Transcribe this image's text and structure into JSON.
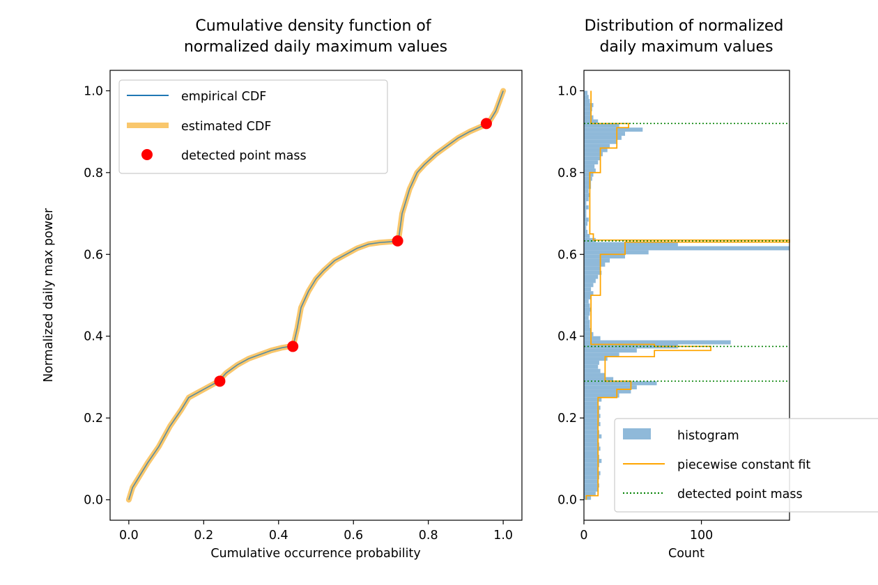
{
  "chart_data": [
    {
      "type": "line",
      "title": "Cumulative density function of\nnormalized daily maximum values",
      "xlabel": "Cumulative occurrence probability",
      "ylabel": "Normalized daily max power",
      "xlim": [
        -0.05,
        1.05
      ],
      "ylim": [
        -0.05,
        1.05
      ],
      "xticks": [
        "0.0",
        "0.2",
        "0.4",
        "0.6",
        "0.8",
        "1.0"
      ],
      "yticks": [
        "0.0",
        "0.2",
        "0.4",
        "0.6",
        "0.8",
        "1.0"
      ],
      "legend": "upper-left",
      "series": [
        {
          "name": "empirical CDF",
          "color": "#1f77b4",
          "x": [
            0.0,
            0.01,
            0.03,
            0.05,
            0.08,
            0.11,
            0.14,
            0.16,
            0.18,
            0.2,
            0.22,
            0.24,
            0.26,
            0.29,
            0.32,
            0.35,
            0.38,
            0.41,
            0.43,
            0.44,
            0.45,
            0.46,
            0.48,
            0.5,
            0.52,
            0.55,
            0.58,
            0.61,
            0.64,
            0.67,
            0.7,
            0.72,
            0.73,
            0.75,
            0.77,
            0.79,
            0.82,
            0.85,
            0.88,
            0.91,
            0.94,
            0.96,
            0.98,
            1.0
          ],
          "y": [
            0.0,
            0.03,
            0.06,
            0.09,
            0.13,
            0.18,
            0.22,
            0.25,
            0.26,
            0.27,
            0.28,
            0.29,
            0.31,
            0.33,
            0.345,
            0.355,
            0.365,
            0.372,
            0.375,
            0.38,
            0.42,
            0.47,
            0.51,
            0.54,
            0.56,
            0.585,
            0.6,
            0.615,
            0.625,
            0.629,
            0.631,
            0.633,
            0.7,
            0.76,
            0.8,
            0.82,
            0.845,
            0.865,
            0.885,
            0.9,
            0.912,
            0.92,
            0.95,
            1.0
          ]
        },
        {
          "name": "estimated CDF",
          "color": "#f9c76c",
          "x": [
            0.0,
            0.01,
            0.03,
            0.05,
            0.08,
            0.11,
            0.14,
            0.16,
            0.18,
            0.2,
            0.22,
            0.24,
            0.26,
            0.29,
            0.32,
            0.35,
            0.38,
            0.41,
            0.43,
            0.44,
            0.45,
            0.46,
            0.48,
            0.5,
            0.52,
            0.55,
            0.58,
            0.61,
            0.64,
            0.67,
            0.7,
            0.72,
            0.73,
            0.75,
            0.77,
            0.79,
            0.82,
            0.85,
            0.88,
            0.91,
            0.94,
            0.96,
            0.98,
            1.0
          ],
          "y": [
            0.0,
            0.03,
            0.06,
            0.09,
            0.13,
            0.18,
            0.22,
            0.25,
            0.26,
            0.27,
            0.28,
            0.29,
            0.31,
            0.33,
            0.345,
            0.355,
            0.365,
            0.372,
            0.375,
            0.38,
            0.42,
            0.47,
            0.51,
            0.54,
            0.56,
            0.585,
            0.6,
            0.615,
            0.625,
            0.629,
            0.631,
            0.633,
            0.7,
            0.76,
            0.8,
            0.82,
            0.845,
            0.865,
            0.885,
            0.9,
            0.912,
            0.92,
            0.95,
            1.0
          ]
        }
      ],
      "points": {
        "name": "detected point mass",
        "color": "#ff0000",
        "x": [
          0.243,
          0.438,
          0.718,
          0.955
        ],
        "y": [
          0.29,
          0.375,
          0.633,
          0.92
        ]
      }
    },
    {
      "type": "bar",
      "orientation": "horizontal",
      "title": "Distribution of normalized\ndaily maximum values",
      "xlabel": "Count",
      "ylabel": "",
      "xlim": [
        0,
        175
      ],
      "ylim": [
        -0.05,
        1.05
      ],
      "xticks": [
        "0",
        "100"
      ],
      "yticks": [
        "0.0",
        "0.2",
        "0.4",
        "0.6",
        "0.8",
        "1.0"
      ],
      "legend": "lower-right",
      "histogram": {
        "name": "histogram",
        "color": "#8fb9d9",
        "bin_width": 0.01,
        "bin_start": 0.0,
        "counts": [
          6,
          10,
          12,
          13,
          12,
          13,
          14,
          12,
          13,
          15,
          13,
          12,
          14,
          13,
          12,
          15,
          13,
          12,
          14,
          13,
          14,
          13,
          14,
          12,
          15,
          30,
          40,
          45,
          62,
          25,
          18,
          14,
          12,
          13,
          20,
          30,
          45,
          80,
          125,
          14,
          8,
          6,
          5,
          5,
          4,
          5,
          6,
          5,
          4,
          6,
          8,
          6,
          8,
          10,
          12,
          15,
          14,
          18,
          22,
          35,
          55,
          175,
          80,
          10,
          5,
          3,
          2,
          3,
          4,
          2,
          2,
          4,
          2,
          4,
          5,
          4,
          6,
          6,
          7,
          8,
          10,
          9,
          12,
          14,
          16,
          20,
          22,
          28,
          32,
          35,
          50,
          30,
          12,
          8,
          6,
          7,
          8,
          5,
          4,
          3
        ]
      },
      "fit": {
        "name": "piecewise constant fit",
        "color": "#ffa500",
        "steps": [
          {
            "y0": 0.0,
            "y1": 0.01,
            "v": 2
          },
          {
            "y0": 0.01,
            "y1": 0.25,
            "v": 12
          },
          {
            "y0": 0.25,
            "y1": 0.27,
            "v": 28
          },
          {
            "y0": 0.27,
            "y1": 0.29,
            "v": 40
          },
          {
            "y0": 0.29,
            "y1": 0.35,
            "v": 18
          },
          {
            "y0": 0.35,
            "y1": 0.365,
            "v": 60
          },
          {
            "y0": 0.365,
            "y1": 0.375,
            "v": 108
          },
          {
            "y0": 0.375,
            "y1": 0.38,
            "v": 60
          },
          {
            "y0": 0.38,
            "y1": 0.5,
            "v": 6
          },
          {
            "y0": 0.5,
            "y1": 0.6,
            "v": 14
          },
          {
            "y0": 0.6,
            "y1": 0.63,
            "v": 35
          },
          {
            "y0": 0.63,
            "y1": 0.635,
            "v": 175
          },
          {
            "y0": 0.635,
            "y1": 0.65,
            "v": 8
          },
          {
            "y0": 0.65,
            "y1": 0.8,
            "v": 5
          },
          {
            "y0": 0.8,
            "y1": 0.86,
            "v": 14
          },
          {
            "y0": 0.86,
            "y1": 0.91,
            "v": 28
          },
          {
            "y0": 0.91,
            "y1": 0.92,
            "v": 38
          },
          {
            "y0": 0.92,
            "y1": 1.0,
            "v": 6
          }
        ]
      },
      "point_mass_lines": {
        "name": "detected point mass",
        "color": "#008000",
        "y": [
          0.29,
          0.375,
          0.633,
          0.92
        ]
      }
    }
  ]
}
